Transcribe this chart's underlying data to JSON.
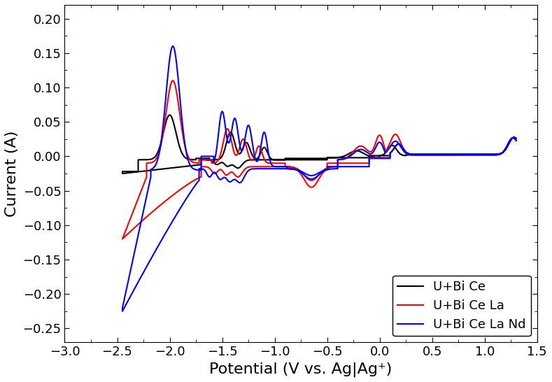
{
  "title": "",
  "xlabel": "Potential (V vs. Ag|Ag⁺)",
  "ylabel": "Current (A)",
  "xlim": [
    -3.0,
    1.5
  ],
  "ylim": [
    -0.27,
    0.22
  ],
  "xticks": [
    -3.0,
    -2.5,
    -2.0,
    -1.5,
    -1.0,
    -0.5,
    0.0,
    0.5,
    1.0,
    1.5
  ],
  "yticks": [
    -0.25,
    -0.2,
    -0.15,
    -0.1,
    -0.05,
    0.0,
    0.05,
    0.1,
    0.15,
    0.2
  ],
  "legend_labels": [
    "U+Bi Ce",
    "U+Bi Ce La",
    "U+Bi Ce La Nd"
  ],
  "line_colors": [
    "black",
    "red",
    "blue"
  ],
  "background_color": "#ffffff",
  "xlabel_fontsize": 16,
  "ylabel_fontsize": 16,
  "tick_fontsize": 13,
  "legend_fontsize": 13
}
